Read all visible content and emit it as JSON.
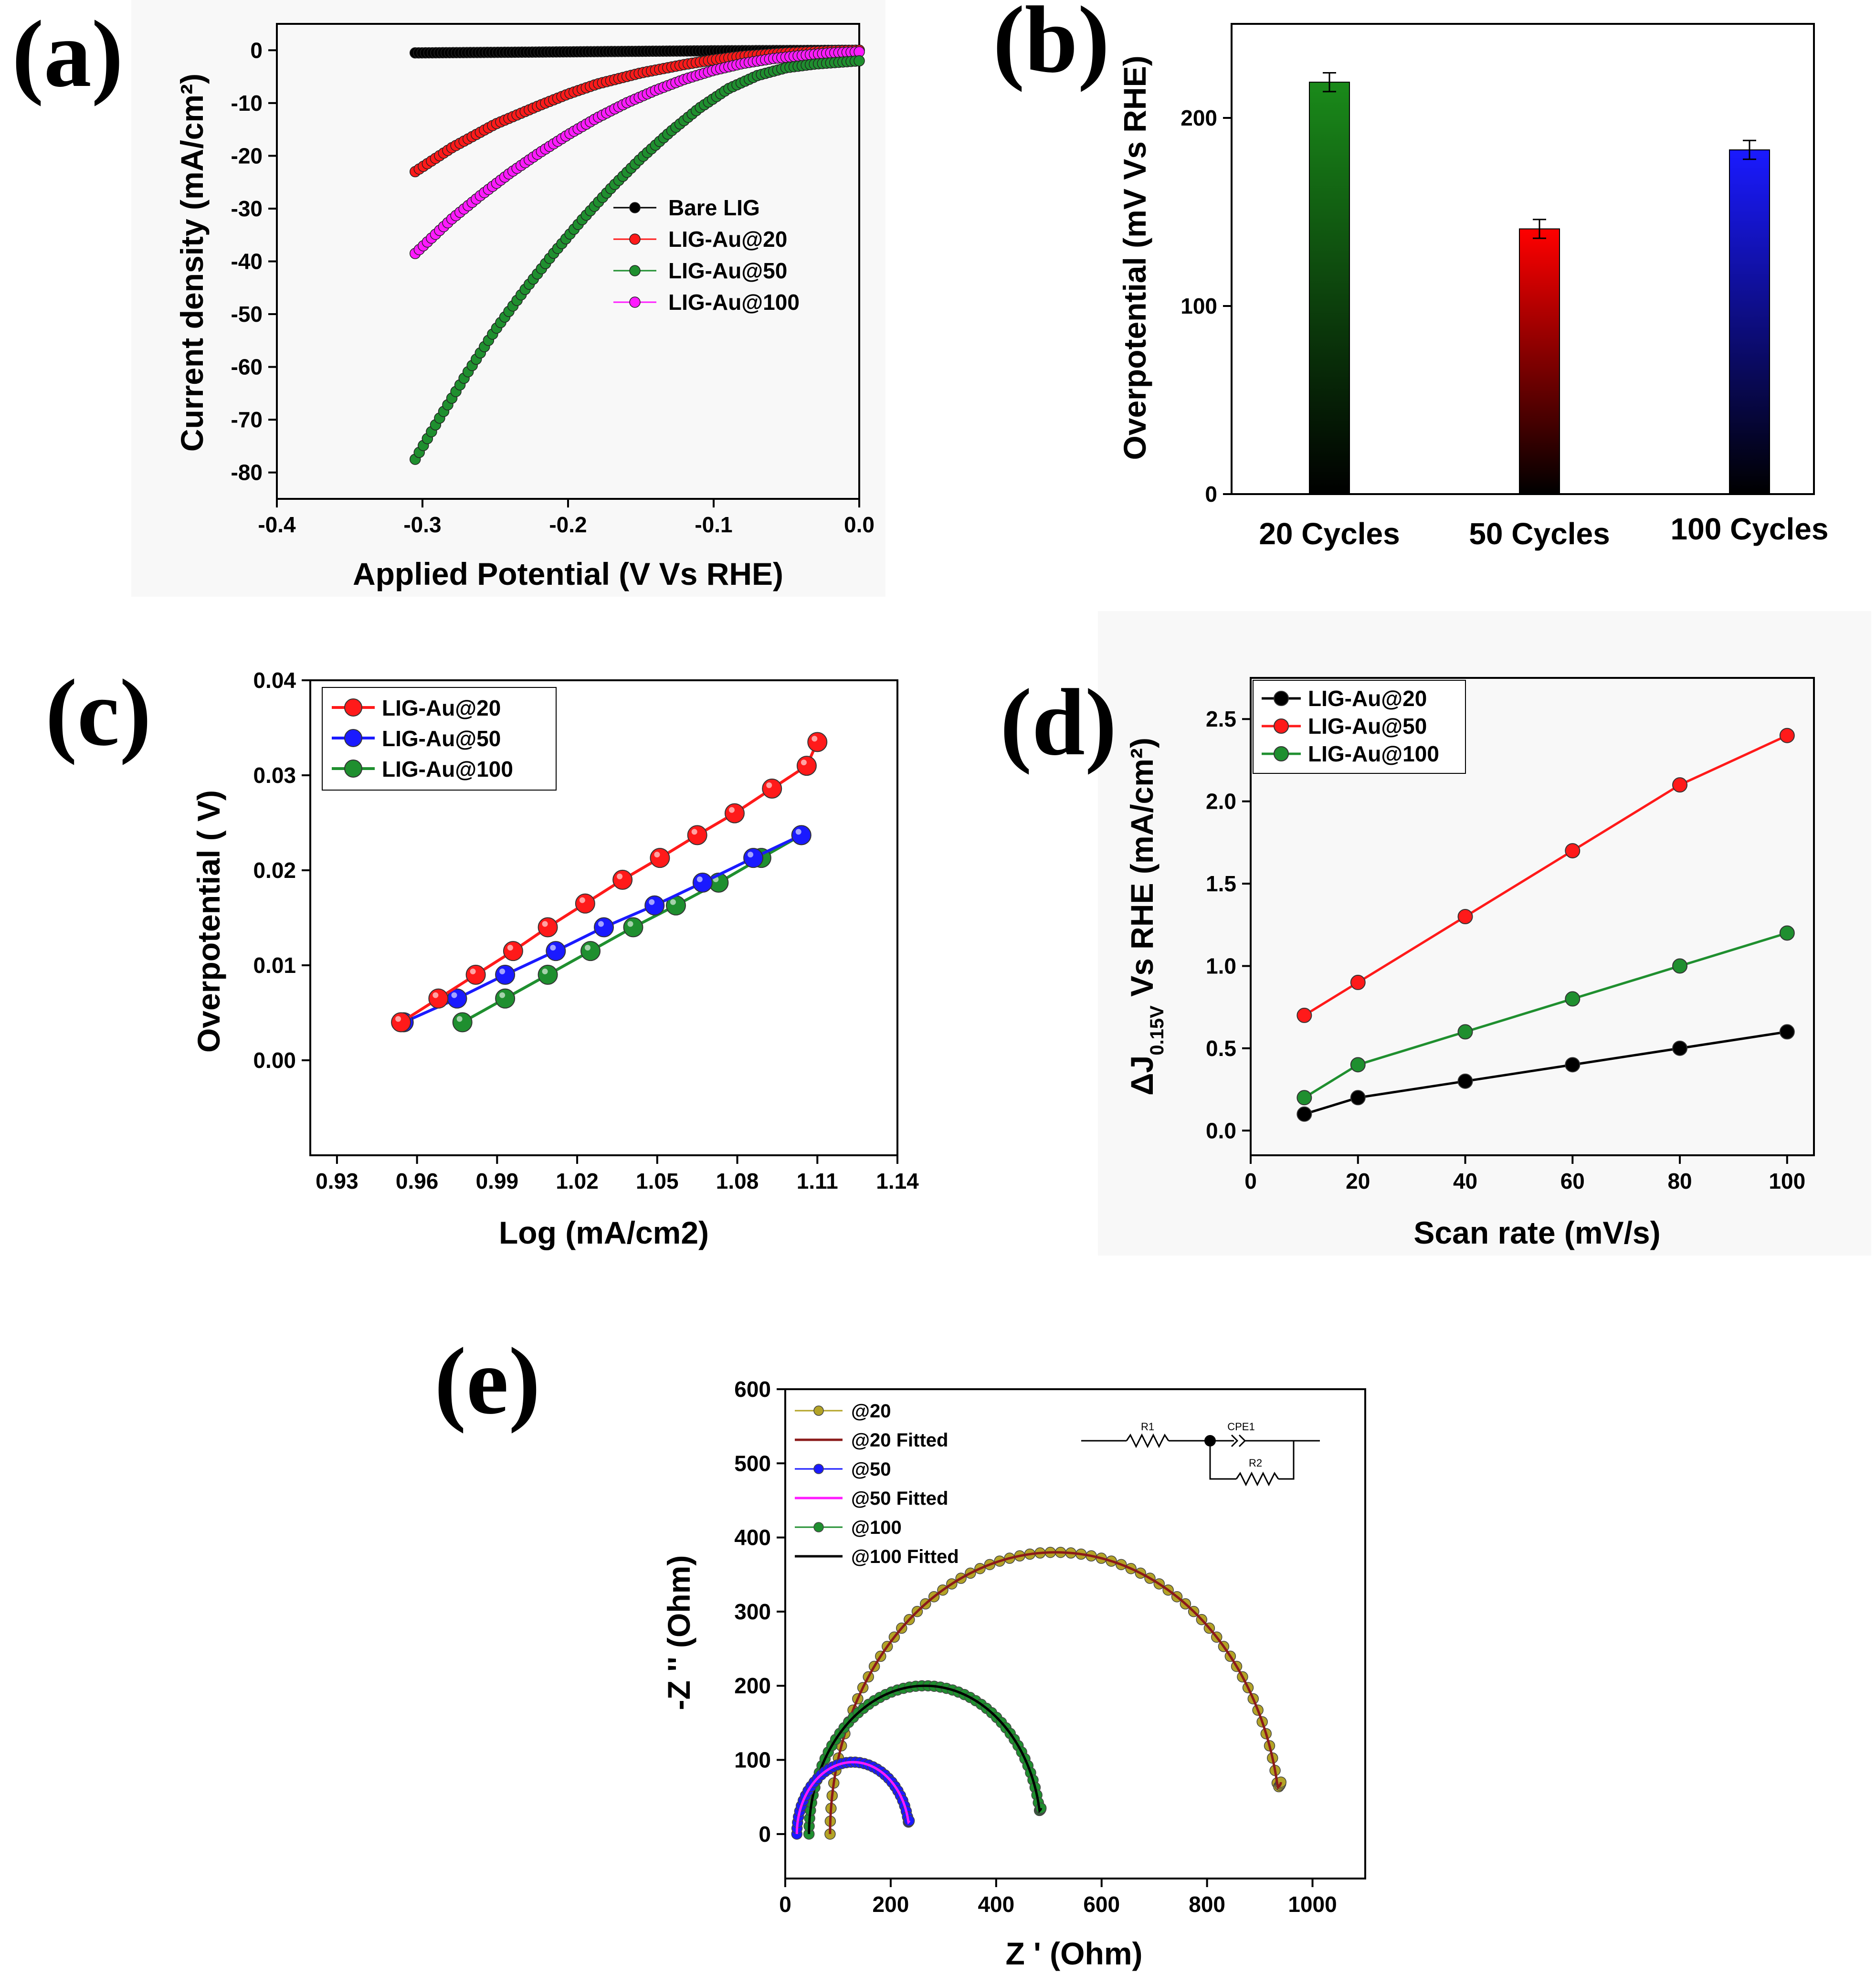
{
  "chart_data": [
    {
      "panel": "(a)",
      "type": "scatter",
      "xlabel": "Applied Potential (V Vs RHE)",
      "ylabel": "Current density (mA/cm²)",
      "xlim": [
        -0.4,
        0.0
      ],
      "ylim": [
        -85,
        5
      ],
      "xticks": [
        -0.4,
        -0.3,
        -0.2,
        -0.1,
        0.0
      ],
      "xtick_labels": [
        "-0.4",
        "-0.3",
        "-0.2",
        "-0.1",
        "0.0"
      ],
      "yticks": [
        0,
        -10,
        -20,
        -30,
        -40,
        -50,
        -60,
        -70,
        -80
      ],
      "ytick_labels": [
        "0",
        "-10",
        "-20",
        "-30",
        "-40",
        "-50",
        "-60",
        "-70",
        "-80"
      ],
      "grid": false,
      "legend_position": "center-right",
      "series": [
        {
          "name": "Bare LIG",
          "color": "#000000",
          "x": [
            -0.305,
            -0.25,
            -0.2,
            -0.15,
            -0.1,
            -0.05,
            0.0
          ],
          "y": [
            -0.5,
            -0.4,
            -0.3,
            -0.2,
            -0.1,
            -0.05,
            0.0
          ]
        },
        {
          "name": "LIG-Au@20",
          "color": "#ff1a1a",
          "x": [
            -0.305,
            -0.28,
            -0.25,
            -0.22,
            -0.2,
            -0.18,
            -0.15,
            -0.12,
            -0.1,
            -0.08,
            -0.05,
            -0.02,
            0.0
          ],
          "y": [
            -23,
            -18.5,
            -14,
            -10.5,
            -8.3,
            -6.4,
            -4.3,
            -2.7,
            -1.8,
            -1.1,
            -0.5,
            -0.15,
            0.0
          ]
        },
        {
          "name": "LIG-Au@50",
          "color": "#1f8f2f",
          "x": [
            -0.305,
            -0.29,
            -0.27,
            -0.25,
            -0.23,
            -0.21,
            -0.19,
            -0.17,
            -0.15,
            -0.13,
            -0.11,
            -0.09,
            -0.07,
            -0.05,
            -0.03,
            -0.01,
            0.0
          ],
          "y": [
            -77.5,
            -70.5,
            -61.5,
            -53,
            -45.5,
            -38.5,
            -32,
            -26,
            -20.5,
            -15.5,
            -11,
            -7.3,
            -4.8,
            -3.3,
            -2.6,
            -2.2,
            -2.0
          ]
        },
        {
          "name": "LIG-Au@100",
          "color": "#ff1aff",
          "x": [
            -0.305,
            -0.28,
            -0.26,
            -0.24,
            -0.22,
            -0.2,
            -0.18,
            -0.16,
            -0.14,
            -0.12,
            -0.1,
            -0.08,
            -0.06,
            -0.04,
            -0.02,
            0.0
          ],
          "y": [
            -38.5,
            -32,
            -27.5,
            -23.3,
            -19.5,
            -16,
            -12.8,
            -10,
            -7.6,
            -5.5,
            -3.8,
            -2.5,
            -1.6,
            -1.0,
            -0.5,
            -0.3
          ]
        }
      ]
    },
    {
      "panel": "(b)",
      "type": "bar",
      "ylabel": "Overpotential (mV Vs RHE)",
      "categories": [
        "20 Cycles",
        "50 Cycles",
        "100 Cycles"
      ],
      "values": [
        219,
        141,
        183
      ],
      "errors": [
        5,
        5,
        5
      ],
      "colors": [
        "#1a8a1a",
        "#ff0000",
        "#1a1aff"
      ],
      "ylim": [
        0,
        250
      ],
      "yticks": [
        0,
        100,
        200
      ],
      "ytick_labels": [
        "0",
        "100",
        "200"
      ],
      "grid": false
    },
    {
      "panel": "(c)",
      "type": "line",
      "xlabel": "Log (mA/cm2)",
      "ylabel": "Overpotential ( V)",
      "xlim": [
        0.92,
        1.14
      ],
      "ylim": [
        -0.01,
        0.04
      ],
      "xticks": [
        0.93,
        0.96,
        0.99,
        1.02,
        1.05,
        1.08,
        1.11,
        1.14
      ],
      "xtick_labels": [
        "0.93",
        "0.96",
        "0.99",
        "1.02",
        "1.05",
        "1.08",
        "1.11",
        "1.14"
      ],
      "yticks": [
        0.0,
        0.01,
        0.02,
        0.03,
        0.04
      ],
      "ytick_labels": [
        "0.00",
        "0.01",
        "0.02",
        "0.03",
        "0.04"
      ],
      "grid": false,
      "legend_position": "top-left",
      "series": [
        {
          "name": "LIG-Au@20",
          "color": "#ff1a1a",
          "x": [
            0.954,
            0.968,
            0.982,
            0.996,
            1.009,
            1.023,
            1.037,
            1.051,
            1.065,
            1.079,
            1.093,
            1.106,
            1.11
          ],
          "y": [
            0.004,
            0.0065,
            0.009,
            0.0115,
            0.014,
            0.0165,
            0.019,
            0.0213,
            0.0237,
            0.026,
            0.0286,
            0.031,
            0.0335
          ]
        },
        {
          "name": "LIG-Au@50",
          "color": "#1a1aff",
          "x": [
            0.955,
            0.975,
            0.993,
            1.012,
            1.03,
            1.049,
            1.067,
            1.086,
            1.104
          ],
          "y": [
            0.004,
            0.0065,
            0.009,
            0.0115,
            0.014,
            0.0163,
            0.0187,
            0.0213,
            0.0237
          ]
        },
        {
          "name": "LIG-Au@100",
          "color": "#1f8f2f",
          "x": [
            0.977,
            0.993,
            1.009,
            1.025,
            1.041,
            1.057,
            1.073,
            1.089,
            1.104
          ],
          "y": [
            0.004,
            0.0065,
            0.009,
            0.0115,
            0.014,
            0.0163,
            0.0187,
            0.0213,
            0.0237
          ]
        }
      ]
    },
    {
      "panel": "(d)",
      "type": "line",
      "xlabel": "Scan rate (mV/s)",
      "ylabel_main": "ΔJ",
      "ylabel_sub": "0.15V",
      "ylabel_rest": " Vs RHE (mA/cm²)",
      "xlim": [
        0,
        105
      ],
      "ylim": [
        -0.15,
        2.75
      ],
      "xticks": [
        0,
        20,
        40,
        60,
        80,
        100
      ],
      "xtick_labels": [
        "0",
        "20",
        "40",
        "60",
        "80",
        "100"
      ],
      "yticks": [
        0.0,
        0.5,
        1.0,
        1.5,
        2.0,
        2.5
      ],
      "ytick_labels": [
        "0.0",
        "0.5",
        "1.0",
        "1.5",
        "2.0",
        "2.5"
      ],
      "grid": false,
      "legend_position": "top-left",
      "series": [
        {
          "name": "LIG-Au@20",
          "color": "#000000",
          "x": [
            10,
            20,
            40,
            60,
            80,
            100
          ],
          "y": [
            0.1,
            0.2,
            0.3,
            0.4,
            0.5,
            0.6
          ]
        },
        {
          "name": "LIG-Au@50",
          "color": "#ff1a1a",
          "x": [
            10,
            20,
            40,
            60,
            80,
            100
          ],
          "y": [
            0.7,
            0.9,
            1.3,
            1.7,
            2.1,
            2.4
          ]
        },
        {
          "name": "LIG-Au@100",
          "color": "#1f8f2f",
          "x": [
            10,
            20,
            40,
            60,
            80,
            100
          ],
          "y": [
            0.2,
            0.4,
            0.6,
            0.8,
            1.0,
            1.2
          ]
        }
      ]
    },
    {
      "panel": "(e)",
      "type": "scatter",
      "xlabel": "Z ' (Ohm)",
      "ylabel": "-Z '' (Ohm)",
      "xlim": [
        0,
        1100
      ],
      "ylim": [
        -60,
        600
      ],
      "xticks": [
        0,
        200,
        400,
        600,
        800,
        1000
      ],
      "xtick_labels": [
        "0",
        "200",
        "400",
        "600",
        "800",
        "1000"
      ],
      "yticks": [
        0,
        100,
        200,
        300,
        400,
        500,
        600
      ],
      "ytick_labels": [
        "0",
        "100",
        "200",
        "300",
        "400",
        "500",
        "600"
      ],
      "grid": false,
      "legend_position": "top-left",
      "circuit_labels": {
        "r1": "R1",
        "cpe": "CPE1",
        "r2": "R2"
      },
      "semicircles": [
        {
          "name": "@20",
          "fit_name": "@20 Fitted",
          "color": "#b3a326",
          "fit_color": "#8b1a1a",
          "x_start": 85,
          "x_end": 940,
          "peak": 380,
          "tail": 70
        },
        {
          "name": "@50",
          "fit_name": "@50 Fitted",
          "color": "#1a1aff",
          "fit_color": "#ff1aff",
          "x_start": 22,
          "x_end": 235,
          "peak": 97,
          "tail": 18
        },
        {
          "name": "@100",
          "fit_name": "@100 Fitted",
          "color": "#1f8f2f",
          "fit_color": "#000000",
          "x_start": 45,
          "x_end": 485,
          "peak": 200,
          "tail": 35
        }
      ]
    }
  ]
}
